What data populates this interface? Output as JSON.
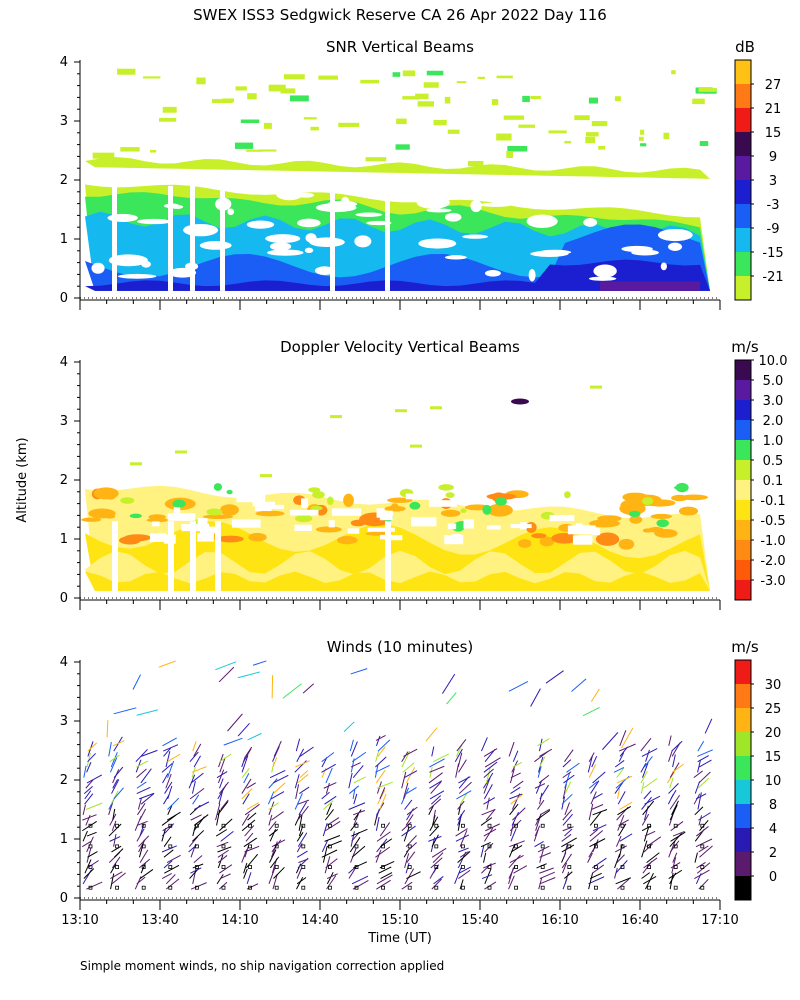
{
  "main_title": "SWEX ISS3 Sedgwick Reserve CA  26 Apr 2022 Day 116",
  "footnote": "Simple moment winds, no ship navigation correction applied",
  "chart_data": [
    {
      "id": "snr",
      "type": "heatmap",
      "title": "SNR Vertical Beams",
      "xlabel": "",
      "ylabel": "",
      "ylim": [
        0,
        4
      ],
      "yticks": [
        "0",
        "1",
        "2",
        "3",
        "4"
      ],
      "colorbar": {
        "unit": "dB",
        "colors": [
          "#c8f02a",
          "#3ce65a",
          "#16b8f0",
          "#1a5ef5",
          "#1b1fcf",
          "#5a1aa0",
          "#3a0a50",
          "#ee1b16",
          "#ff7a14",
          "#ffc214"
        ],
        "labels": [
          "-21",
          "-15",
          "-9",
          "-3",
          "3",
          "9",
          "15",
          "21",
          "27"
        ]
      },
      "layers": [
        {
          "description": "lower echo layer",
          "ymax_profile_km": [
            1.8,
            1.9,
            1.85,
            1.9,
            1.85,
            1.8,
            1.75,
            1.7,
            1.65,
            1.6,
            1.55,
            1.5,
            1.45,
            1.4
          ]
        }
      ]
    },
    {
      "id": "velocity",
      "type": "heatmap",
      "title": "Doppler Velocity Vertical Beams",
      "xlabel": "",
      "ylabel": "Altitude (km)",
      "ylim": [
        0,
        4
      ],
      "yticks": [
        "0",
        "1",
        "2",
        "3",
        "4"
      ],
      "colorbar": {
        "unit": "m/s",
        "colors": [
          "#ee1b16",
          "#ff5a0a",
          "#ff8a14",
          "#ffb414",
          "#ffe414",
          "#fff280",
          "#c8f02a",
          "#3ce65a",
          "#1a5ef5",
          "#1b1fcf",
          "#5a1aa0",
          "#3a0a50"
        ],
        "labels": [
          "-3.0",
          "-2.0",
          "-1.0",
          "-0.5",
          "-0.1",
          "0.1",
          "0.5",
          "1.0",
          "2.0",
          "3.0",
          "5.0",
          "10.0"
        ]
      }
    },
    {
      "id": "winds",
      "type": "scatter",
      "title": "Winds (10 minutes)",
      "xlabel": "Time (UT)",
      "ylabel": "",
      "ylim": [
        0,
        4
      ],
      "yticks": [
        "0",
        "1",
        "2",
        "3",
        "4"
      ],
      "xticks": [
        "13:10",
        "13:40",
        "14:10",
        "14:40",
        "15:10",
        "15:40",
        "16:10",
        "16:40",
        "17:10"
      ],
      "colorbar": {
        "unit": "m/s",
        "colors": [
          "#000000",
          "#5a1a6e",
          "#2a1ab4",
          "#1a5ef5",
          "#16c8d8",
          "#3ce65a",
          "#a0e628",
          "#ffb414",
          "#ff7a14",
          "#ee1b16"
        ],
        "labels": [
          "0",
          "2",
          "4",
          "8",
          "10",
          "15",
          "20",
          "25",
          "30"
        ]
      }
    }
  ]
}
